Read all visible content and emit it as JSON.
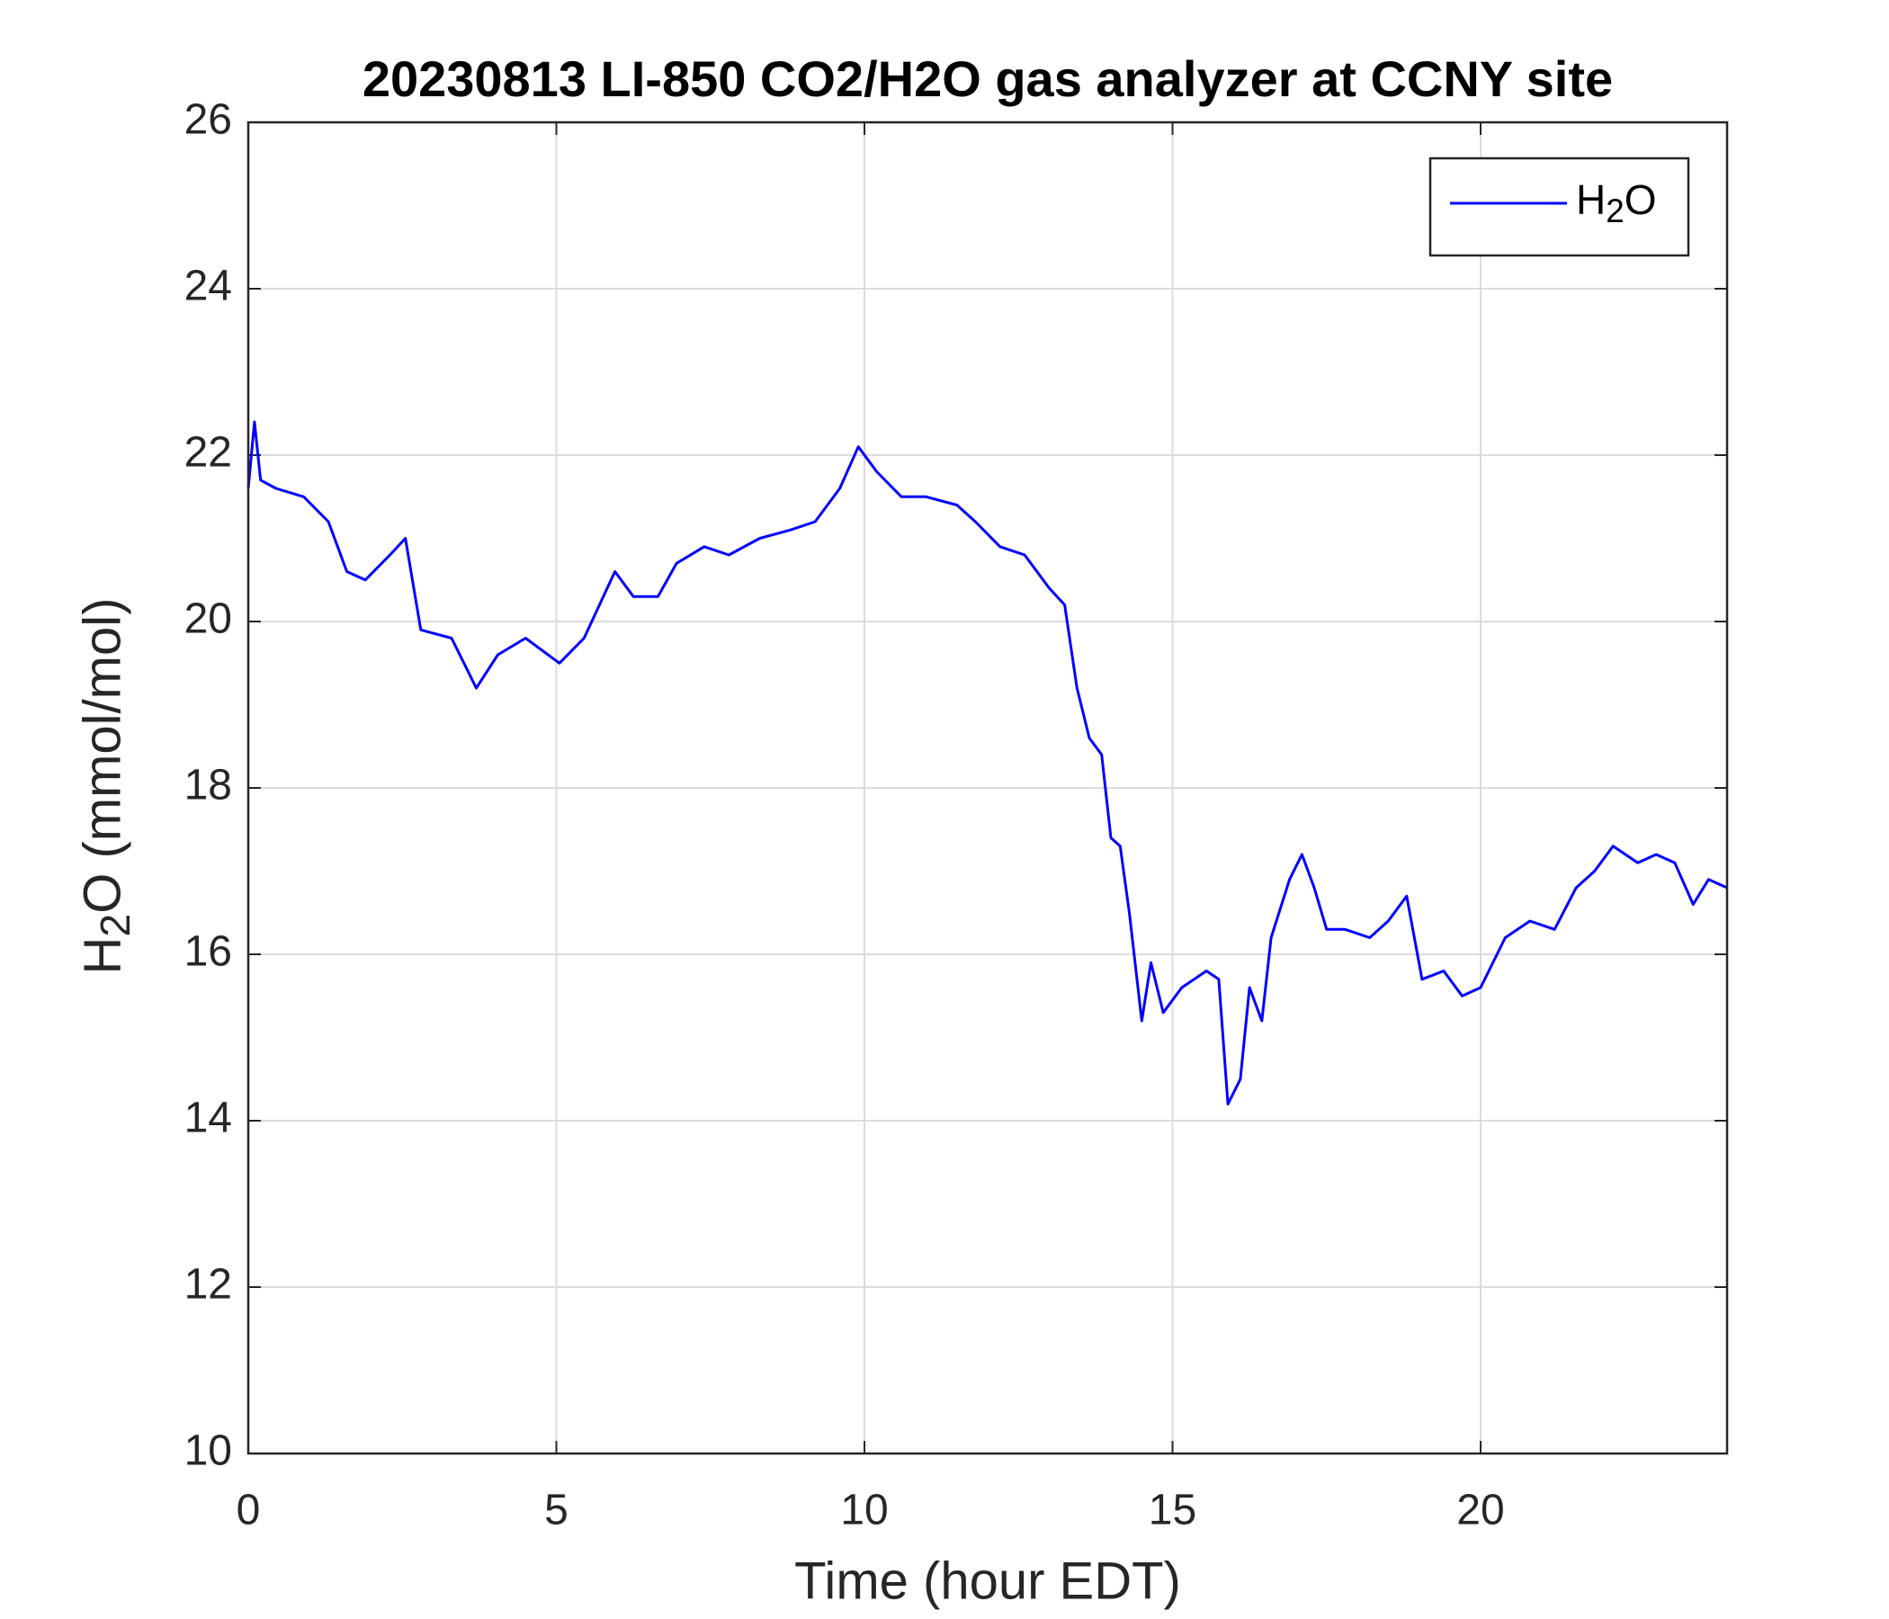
{
  "chart_data": {
    "type": "line",
    "title": "20230813 LI-850 CO2/H2O gas analyzer at CCNY site",
    "x_label": "Time (hour EDT)",
    "y_label": "H2O (mmol/mol)",
    "x": [
      0,
      0.1,
      0.2,
      0.45,
      0.9,
      1.3,
      1.6,
      1.9,
      2.3,
      2.55,
      2.8,
      3.3,
      3.7,
      4.05,
      4.5,
      5.05,
      5.45,
      5.95,
      6.25,
      6.65,
      6.95,
      7.4,
      7.8,
      8.3,
      8.8,
      9.2,
      9.6,
      9.9,
      10.2,
      10.6,
      11.0,
      11.5,
      11.8,
      12.2,
      12.6,
      13.0,
      13.25,
      13.45,
      13.65,
      13.85,
      14.0,
      14.15,
      14.3,
      14.5,
      14.65,
      14.85,
      15.15,
      15.55,
      15.75,
      15.9,
      16.1,
      16.25,
      16.45,
      16.6,
      16.9,
      17.1,
      17.3,
      17.5,
      17.8,
      18.2,
      18.5,
      18.8,
      19.05,
      19.4,
      19.7,
      20.0,
      20.4,
      20.8,
      21.2,
      21.55,
      21.85,
      22.15,
      22.55,
      22.85,
      23.15,
      23.45,
      23.7,
      24.0
    ],
    "series": [
      {
        "name": "H2O",
        "color": "#0000ff",
        "values": [
          21.6,
          22.4,
          21.7,
          21.6,
          21.5,
          21.2,
          20.6,
          20.5,
          20.8,
          21.0,
          19.9,
          19.8,
          19.2,
          19.6,
          19.8,
          19.5,
          19.8,
          20.6,
          20.3,
          20.3,
          20.7,
          20.9,
          20.8,
          21.0,
          21.1,
          21.2,
          21.6,
          22.1,
          21.8,
          21.5,
          21.5,
          21.4,
          21.2,
          20.9,
          20.8,
          20.4,
          20.2,
          19.2,
          18.6,
          18.4,
          17.4,
          17.3,
          16.5,
          15.2,
          15.9,
          15.3,
          15.6,
          15.8,
          15.7,
          14.2,
          14.5,
          15.6,
          15.2,
          16.2,
          16.9,
          17.2,
          16.8,
          16.3,
          16.3,
          16.2,
          16.4,
          16.7,
          15.7,
          15.8,
          15.5,
          15.6,
          16.2,
          16.4,
          16.3,
          16.8,
          17.0,
          17.3,
          17.1,
          17.2,
          17.1,
          16.6,
          16.9,
          16.8
        ]
      }
    ],
    "xlim": [
      0,
      24
    ],
    "xticks": [
      0,
      5,
      10,
      15,
      20
    ],
    "ylim": [
      10,
      26
    ],
    "yticks": [
      10,
      12,
      14,
      16,
      18,
      20,
      22,
      24,
      26
    ],
    "grid": true,
    "legend": "upper right"
  }
}
